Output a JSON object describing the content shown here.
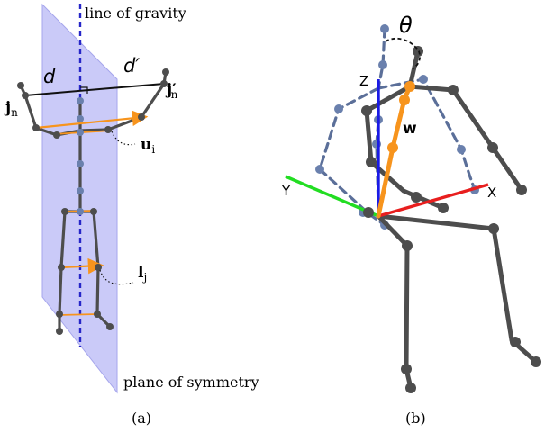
{
  "panel_a": {
    "caption": "(a)",
    "line_of_gravity": "line of gravity",
    "plane_of_symmetry": "plane of symmetry",
    "d": "d",
    "d_prime": "d′",
    "j_n": "j",
    "j_n_sub": "n",
    "j_n_prime": "j′",
    "j_n_prime_sub": "n",
    "u": "u",
    "u_sub": "i",
    "l": "l",
    "l_sub": "j"
  },
  "panel_b": {
    "caption": "(b)",
    "theta": "θ",
    "w": "w",
    "axis_x": "X",
    "axis_y": "Y",
    "axis_z": "Z"
  },
  "colors": {
    "plane": "#b8b8f5",
    "gravity": "#2626c8",
    "skeleton": "#4d4d4d",
    "orange": "#f7941d",
    "dashed_skeleton": "#5b6f99",
    "axis_x": "#e81e1e",
    "axis_y": "#22dd22",
    "axis_z": "#1a1ae6"
  }
}
